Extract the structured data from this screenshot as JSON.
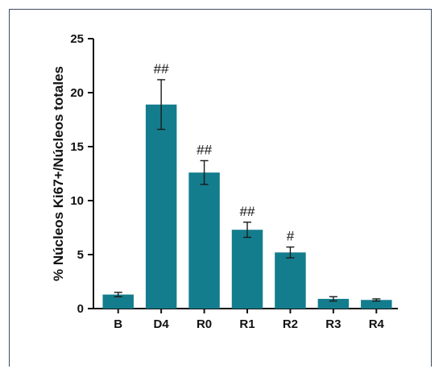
{
  "chart_data": {
    "type": "bar",
    "categories": [
      "B",
      "D4",
      "R0",
      "R1",
      "R2",
      "R3",
      "R4"
    ],
    "values": [
      1.3,
      18.9,
      12.6,
      7.3,
      5.2,
      0.9,
      0.8
    ],
    "errors": [
      0.2,
      2.3,
      1.1,
      0.7,
      0.5,
      0.2,
      0.1
    ],
    "annotations": [
      "",
      "##",
      "##",
      "##",
      "#",
      "",
      ""
    ],
    "title": "",
    "xlabel": "",
    "ylabel": "% Núcleos Ki67+/Núcleos totales",
    "ylim": [
      0,
      25
    ],
    "yticks": [
      0,
      5,
      10,
      15,
      20,
      25
    ],
    "ytick_labels": [
      "0",
      "5",
      "10",
      "15",
      "20",
      "25"
    ],
    "grid": false,
    "colors": {
      "bar": "#137d8d",
      "error": "#1a1a1a",
      "axis": "#111111",
      "frame": "#3a4a63"
    }
  }
}
